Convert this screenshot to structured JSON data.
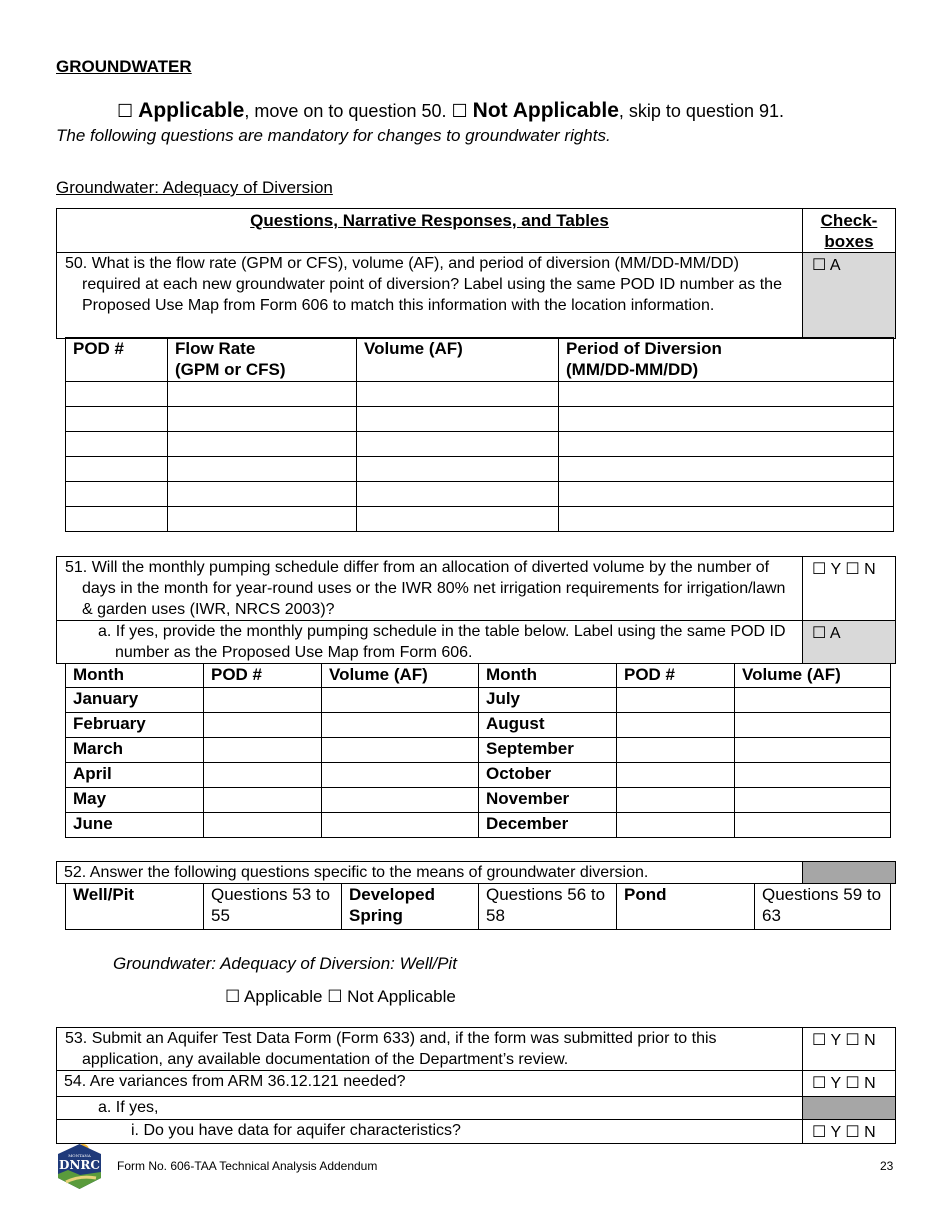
{
  "section_title": "GROUNDWATER",
  "applicability": {
    "box": "☐",
    "applicable": "Applicable",
    "applicable_rest": ", move on to question 50.",
    "not_applicable": "Not Applicable",
    "not_applicable_rest": ", skip to question 91."
  },
  "mandatory_note": "The following questions are mandatory for changes to groundwater rights.",
  "subsection_title": "Groundwater: Adequacy of Diversion",
  "table_header": {
    "questions": "Questions, Narrative Responses, and Tables",
    "checkboxes": "Check-boxes"
  },
  "q50": {
    "text": "50. What is the flow rate (GPM or CFS), volume (AF), and period of diversion (MM/DD-MM/DD) required at each new groundwater point of diversion? Label using the same POD ID number as the Proposed Use Map from Form 606 to match this information with the location information.",
    "check": "☐ A"
  },
  "pod_table": {
    "headers": [
      "POD #",
      "Flow Rate\n(GPM or CFS)",
      "Volume (AF)",
      "Period of Diversion\n(MM/DD-MM/DD)"
    ]
  },
  "q51": {
    "text": "51. Will the monthly pumping schedule differ from an allocation of diverted volume by the number of days in the month for year-round uses or the IWR 80% net irrigation requirements for irrigation/lawn & garden uses (IWR, NRCS 2003)?",
    "check": "☐ Y ☐ N",
    "a_text": "a. If yes, provide the monthly pumping schedule in the table below. Label using the same POD ID number as the Proposed Use Map from Form 606.",
    "a_check": "☐ A"
  },
  "month_table": {
    "headers": [
      "Month",
      "POD #",
      "Volume (AF)",
      "Month",
      "POD #",
      "Volume (AF)"
    ],
    "left": [
      "January",
      "February",
      "March",
      "April",
      "May",
      "June"
    ],
    "right": [
      "July",
      "August",
      "September",
      "October",
      "November",
      "December"
    ]
  },
  "q52": {
    "text": "52. Answer the following questions specific to the means of groundwater diversion."
  },
  "means_table": [
    "Well/Pit",
    "Questions 53 to 55",
    "Developed Spring",
    "Questions 56 to 58",
    "Pond",
    "Questions 59 to 63"
  ],
  "wellpit_title": "Groundwater: Adequacy of Diversion: Well/Pit",
  "wellpit_applicability": "☐ Applicable ☐ Not Applicable",
  "q53": {
    "text": "53. Submit an Aquifer Test Data Form (Form 633) and, if the form was submitted prior to this application, any available documentation of the Department’s review.",
    "check": "☐ Y ☐ N"
  },
  "q54": {
    "text": "54. Are variances from ARM 36.12.121 needed?",
    "check": "☐ Y ☐ N",
    "a_text": "a. If yes,",
    "i_text": "i. Do you have data for aquifer characteristics?",
    "i_check": "☐ Y ☐ N"
  },
  "footer": {
    "logo_text": "DNRC",
    "logo_top": "MONTANA",
    "form": "Form No. 606-TAA Technical Analysis Addendum",
    "page": "23"
  },
  "colors": {
    "light_gray": "#d9d9d9",
    "dark_gray": "#a6a6a6"
  }
}
